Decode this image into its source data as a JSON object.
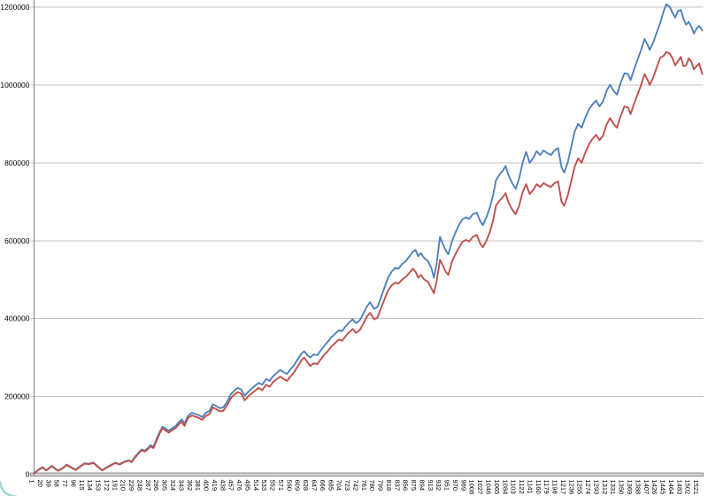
{
  "chart_data": {
    "type": "line",
    "title": "",
    "xlabel": "",
    "ylabel": "",
    "legend": "none",
    "grid": "horizontal",
    "xlim": [
      1,
      1530
    ],
    "ylim": [
      0,
      1200000
    ],
    "y_tick_labels": [
      "0",
      "200000",
      "400000",
      "600000",
      "800000",
      "1000000",
      "1200000"
    ],
    "x_tick_labels": [
      "1",
      "20",
      "39",
      "58",
      "77",
      "96",
      "115",
      "134",
      "153",
      "172",
      "191",
      "210",
      "229",
      "248",
      "267",
      "286",
      "305",
      "324",
      "343",
      "362",
      "381",
      "400",
      "419",
      "438",
      "457",
      "476",
      "495",
      "514",
      "533",
      "552",
      "571",
      "590",
      "609",
      "628",
      "647",
      "666",
      "685",
      "704",
      "723",
      "742",
      "761",
      "780",
      "799",
      "818",
      "837",
      "856",
      "875",
      "894",
      "913",
      "932",
      "951",
      "970",
      "989",
      "1008",
      "1027",
      "1046",
      "1065",
      "1084",
      "1103",
      "1122",
      "1141",
      "1160",
      "1179",
      "1198",
      "1217",
      "1236",
      "1255",
      "1274",
      "1293",
      "1312",
      "1331",
      "1350",
      "1369",
      "1388",
      "1407",
      "1426",
      "1445",
      "1464",
      "1483",
      "1502",
      "1521"
    ],
    "x": [
      1,
      13,
      21,
      29,
      42,
      50,
      56,
      66,
      76,
      86,
      96,
      106,
      116,
      127,
      137,
      147,
      157,
      167,
      177,
      187,
      197,
      208,
      218,
      224,
      232,
      242,
      248,
      254,
      262,
      268,
      274,
      283,
      289,
      295,
      301,
      309,
      317,
      325,
      333,
      339,
      345,
      353,
      362,
      370,
      378,
      386,
      394,
      402,
      410,
      418,
      426,
      434,
      442,
      451,
      459,
      467,
      475,
      483,
      491,
      499,
      507,
      515,
      523,
      532,
      540,
      548,
      556,
      564,
      572,
      580,
      588,
      596,
      604,
      613,
      619,
      627,
      633,
      641,
      649,
      657,
      665,
      673,
      681,
      689,
      698,
      706,
      714,
      722,
      730,
      738,
      746,
      754,
      762,
      770,
      779,
      787,
      795,
      803,
      811,
      819,
      827,
      835,
      843,
      852,
      860,
      868,
      874,
      880,
      886,
      894,
      902,
      910,
      916,
      922,
      930,
      937,
      943,
      949,
      957,
      965,
      973,
      981,
      989,
      997,
      1005,
      1014,
      1022,
      1028,
      1036,
      1044,
      1052,
      1058,
      1066,
      1074,
      1080,
      1086,
      1095,
      1103,
      1111,
      1119,
      1127,
      1135,
      1143,
      1151,
      1159,
      1167,
      1175,
      1184,
      1192,
      1200,
      1208,
      1214,
      1222,
      1230,
      1238,
      1246,
      1254,
      1262,
      1271,
      1279,
      1287,
      1295,
      1303,
      1311,
      1319,
      1327,
      1335,
      1343,
      1352,
      1360,
      1366,
      1374,
      1382,
      1390,
      1398,
      1404,
      1410,
      1418,
      1426,
      1434,
      1442,
      1448,
      1456,
      1462,
      1468,
      1475,
      1481,
      1487,
      1493,
      1499,
      1505,
      1511,
      1517,
      1523,
      1530
    ],
    "series": [
      {
        "name": "series-1-blue",
        "color": "#4f81bd",
        "values": [
          2000,
          14000,
          18000,
          11000,
          22000,
          14000,
          10000,
          16000,
          25000,
          18000,
          12000,
          20000,
          28000,
          27000,
          30000,
          20000,
          11000,
          18000,
          24000,
          30000,
          26000,
          33000,
          36000,
          32000,
          45000,
          58000,
          64000,
          60000,
          68000,
          75000,
          70000,
          95000,
          110000,
          122000,
          118000,
          112000,
          118000,
          124000,
          135000,
          141000,
          130000,
          150000,
          158000,
          155000,
          152000,
          147000,
          158000,
          162000,
          180000,
          175000,
          170000,
          172000,
          185000,
          205000,
          215000,
          222000,
          218000,
          202000,
          212000,
          220000,
          228000,
          235000,
          230000,
          245000,
          240000,
          252000,
          260000,
          268000,
          262000,
          258000,
          270000,
          280000,
          295000,
          310000,
          316000,
          305000,
          300000,
          308000,
          306000,
          318000,
          330000,
          340000,
          352000,
          360000,
          370000,
          368000,
          380000,
          390000,
          398000,
          388000,
          395000,
          412000,
          430000,
          442000,
          425000,
          430000,
          455000,
          480000,
          505000,
          520000,
          530000,
          528000,
          540000,
          548000,
          560000,
          572000,
          576000,
          560000,
          568000,
          555000,
          548000,
          530000,
          505000,
          540000,
          610000,
          590000,
          575000,
          565000,
          598000,
          620000,
          640000,
          655000,
          660000,
          656000,
          668000,
          672000,
          650000,
          640000,
          660000,
          685000,
          720000,
          755000,
          770000,
          780000,
          792000,
          770000,
          748000,
          733000,
          760000,
          800000,
          828000,
          800000,
          812000,
          830000,
          820000,
          832000,
          825000,
          820000,
          832000,
          838000,
          788000,
          775000,
          800000,
          840000,
          880000,
          900000,
          890000,
          915000,
          938000,
          950000,
          960000,
          945000,
          958000,
          985000,
          1000000,
          985000,
          975000,
          1005000,
          1030000,
          1028000,
          1012000,
          1040000,
          1065000,
          1090000,
          1118000,
          1105000,
          1090000,
          1110000,
          1135000,
          1160000,
          1190000,
          1207000,
          1200000,
          1185000,
          1173000,
          1190000,
          1193000,
          1170000,
          1155000,
          1162000,
          1150000,
          1132000,
          1145000,
          1152000,
          1140000
        ]
      },
      {
        "name": "series-2-red",
        "color": "#c0504d",
        "values": [
          2000,
          13000,
          17000,
          10000,
          21000,
          13000,
          9000,
          15000,
          24000,
          17000,
          11000,
          19000,
          27000,
          26000,
          29000,
          19000,
          10000,
          17000,
          23000,
          29000,
          25000,
          32000,
          35000,
          31000,
          43000,
          56000,
          62000,
          58000,
          65000,
          72000,
          67000,
          91000,
          106000,
          118000,
          113000,
          107000,
          113000,
          119000,
          129000,
          135000,
          124000,
          144000,
          151000,
          148000,
          145000,
          140000,
          150000,
          154000,
          172000,
          167000,
          162000,
          163000,
          176000,
          195000,
          205000,
          211000,
          207000,
          190000,
          200000,
          208000,
          215000,
          222000,
          216000,
          230000,
          225000,
          237000,
          244000,
          251000,
          245000,
          240000,
          252000,
          262000,
          277000,
          293000,
          300000,
          287000,
          278000,
          285000,
          283000,
          295000,
          307000,
          316000,
          328000,
          336000,
          346000,
          343000,
          355000,
          365000,
          373000,
          363000,
          370000,
          386000,
          404000,
          415000,
          398000,
          403000,
          427000,
          450000,
          472000,
          485000,
          492000,
          490000,
          500000,
          507000,
          518000,
          528000,
          520000,
          505000,
          512000,
          500000,
          495000,
          478000,
          465000,
          495000,
          551000,
          535000,
          520000,
          512000,
          545000,
          565000,
          582000,
          597000,
          602000,
          598000,
          610000,
          615000,
          592000,
          583000,
          600000,
          622000,
          655000,
          690000,
          703000,
          712000,
          722000,
          700000,
          680000,
          668000,
          690000,
          725000,
          745000,
          720000,
          730000,
          745000,
          738000,
          748000,
          742000,
          738000,
          748000,
          752000,
          700000,
          690000,
          715000,
          752000,
          790000,
          812000,
          800000,
          825000,
          848000,
          862000,
          872000,
          858000,
          870000,
          898000,
          915000,
          900000,
          890000,
          920000,
          945000,
          942000,
          925000,
          952000,
          975000,
          1000000,
          1028000,
          1015000,
          1000000,
          1020000,
          1045000,
          1070000,
          1075000,
          1085000,
          1080000,
          1068000,
          1050000,
          1062000,
          1072000,
          1048000,
          1050000,
          1068000,
          1060000,
          1040000,
          1048000,
          1055000,
          1028000
        ]
      }
    ]
  },
  "colors": {
    "background": "#ffffff",
    "gridline": "#c3c3c3",
    "axis_line": "#808080",
    "axis_bar_fill": "#d4d4d4",
    "axis_bar_edge": "#8f8f8f",
    "tick_text": "#000000",
    "corner_accent": "#a2d6d0"
  }
}
